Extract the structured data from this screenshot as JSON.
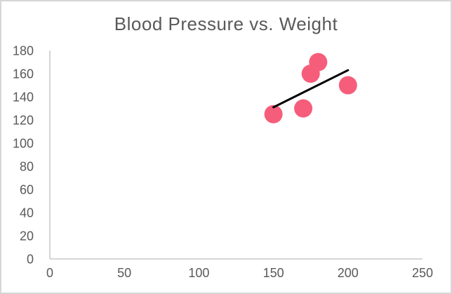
{
  "frame": {
    "background": "#ffffff",
    "border_color": "#d6d6d6"
  },
  "chart_data": {
    "type": "scatter",
    "title": "Blood Pressure vs. Weight",
    "xlabel": "",
    "ylabel": "",
    "xlim": [
      0,
      250
    ],
    "ylim": [
      0,
      180
    ],
    "x_ticks": [
      0,
      50,
      100,
      150,
      200,
      250
    ],
    "y_ticks": [
      0,
      20,
      40,
      60,
      80,
      100,
      120,
      140,
      160,
      180
    ],
    "grid": false,
    "legend": false,
    "points": [
      {
        "x": 150,
        "y": 125
      },
      {
        "x": 170,
        "y": 130
      },
      {
        "x": 175,
        "y": 160
      },
      {
        "x": 180,
        "y": 170
      },
      {
        "x": 200,
        "y": 150
      }
    ],
    "trendline": {
      "type": "linear",
      "x1": 150,
      "y1": 131,
      "x2": 200,
      "y2": 163
    },
    "marker_color": "#f65d7a",
    "marker_radius": 13,
    "trendline_color": "#000000",
    "axis_color": "#c8c8c8",
    "text_color": "#595959"
  }
}
